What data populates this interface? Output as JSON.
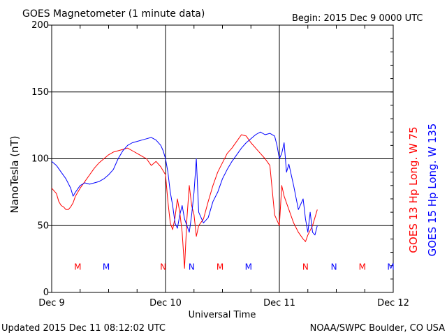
{
  "header": {
    "title": "GOES Magnetometer (1 minute data)",
    "begin": "Begin:  2015 Dec 9 0000 UTC"
  },
  "footer": {
    "updated": "Updated 2015 Dec 11 08:12:02 UTC",
    "credit": "NOAA/SWPC Boulder, CO USA"
  },
  "colors": {
    "goes13": "#ff0000",
    "goes15": "#0000ff",
    "axis": "#000000",
    "background": "#ffffff"
  },
  "chart_data": {
    "type": "line",
    "title": "GOES Magnetometer (1 minute data)",
    "xlabel": "Universal Time",
    "ylabel": "NanoTesla (nT)",
    "xlim": [
      "2015-12-09T00:00",
      "2015-12-12T00:00"
    ],
    "x_unit": "hours since 2015 Dec 9 0000 UTC",
    "ylim": [
      0,
      200
    ],
    "y_ticks": [
      0,
      50,
      100,
      150,
      200
    ],
    "x_ticks": [
      {
        "x": 0,
        "label": "Dec 9"
      },
      {
        "x": 24,
        "label": "Dec 10"
      },
      {
        "x": 48,
        "label": "Dec 11"
      },
      {
        "x": 72,
        "label": "Dec 12"
      }
    ],
    "grid": true,
    "legend_position": "right, vertical",
    "series": [
      {
        "name": "GOES 13 Hp  Long. W 75",
        "color": "#ff0000",
        "x": [
          0,
          1,
          1.5,
          2,
          2.5,
          3,
          3.5,
          4,
          4.5,
          5,
          6,
          7,
          8,
          9,
          10,
          11,
          12,
          13,
          14,
          15,
          16,
          17,
          18,
          19,
          20,
          21,
          22,
          23,
          24,
          24.5,
          25,
          25.5,
          26,
          26.5,
          27,
          27.5,
          28,
          28.5,
          29,
          29.5,
          30,
          30.5,
          31,
          32,
          33,
          34,
          35,
          36,
          37,
          38,
          39,
          40,
          41,
          42,
          43,
          44,
          45,
          46,
          47,
          48,
          48.5,
          49,
          50,
          51,
          52,
          53,
          53.5,
          54,
          55,
          56
        ],
        "y": [
          78,
          74,
          68,
          65,
          64,
          62,
          62,
          64,
          67,
          72,
          78,
          83,
          88,
          93,
          97,
          100,
          103,
          105,
          106,
          107,
          108,
          106,
          104,
          102,
          100,
          95,
          98,
          94,
          88,
          68,
          52,
          47,
          56,
          70,
          60,
          45,
          18,
          55,
          80,
          65,
          58,
          42,
          50,
          55,
          68,
          80,
          90,
          97,
          104,
          108,
          113,
          118,
          117,
          112,
          108,
          104,
          100,
          95,
          58,
          50,
          80,
          72,
          62,
          52,
          45,
          40,
          38,
          43,
          50,
          62
        ]
      },
      {
        "name": "GOES 15 Hp  Long. W 135",
        "color": "#0000ff",
        "x": [
          0,
          1,
          2,
          3,
          4,
          4.5,
          5,
          6,
          7,
          8,
          9,
          10,
          11,
          12,
          13,
          14,
          15,
          16,
          17,
          18,
          19,
          20,
          21,
          22,
          23,
          23.5,
          24,
          24.5,
          25,
          25.5,
          26,
          26.5,
          27,
          27.5,
          28,
          29,
          29.5,
          30,
          30.5,
          31,
          32,
          33,
          34,
          35,
          36,
          37,
          38,
          39,
          40,
          41,
          42,
          43,
          44,
          45,
          46,
          47,
          47.5,
          48,
          48.5,
          49,
          49.5,
          50,
          51,
          52,
          53,
          53.5,
          54,
          54.5,
          55,
          55.5,
          56
        ],
        "y": [
          98,
          95,
          90,
          85,
          78,
          72,
          75,
          80,
          82,
          81,
          82,
          83,
          85,
          88,
          92,
          100,
          106,
          110,
          112,
          113,
          114,
          115,
          116,
          114,
          110,
          106,
          100,
          90,
          75,
          65,
          52,
          48,
          58,
          65,
          55,
          45,
          58,
          75,
          100,
          60,
          52,
          56,
          68,
          75,
          85,
          92,
          98,
          103,
          108,
          112,
          115,
          118,
          120,
          118,
          119,
          117,
          110,
          100,
          104,
          112,
          90,
          96,
          80,
          62,
          70,
          55,
          45,
          60,
          45,
          43,
          50
        ]
      }
    ],
    "annotations": [
      {
        "x": 5.5,
        "y": 17,
        "text": "M",
        "color": "#ff0000"
      },
      {
        "x": 11.5,
        "y": 17,
        "text": "M",
        "color": "#0000ff"
      },
      {
        "x": 23.5,
        "y": 17,
        "text": "N",
        "color": "#ff0000"
      },
      {
        "x": 29.5,
        "y": 17,
        "text": "N",
        "color": "#0000ff"
      },
      {
        "x": 35.5,
        "y": 17,
        "text": "M",
        "color": "#ff0000"
      },
      {
        "x": 41.5,
        "y": 17,
        "text": "M",
        "color": "#0000ff"
      },
      {
        "x": 53.5,
        "y": 17,
        "text": "N",
        "color": "#ff0000"
      },
      {
        "x": 59.5,
        "y": 17,
        "text": "N",
        "color": "#0000ff"
      },
      {
        "x": 65.5,
        "y": 17,
        "text": "M",
        "color": "#ff0000"
      },
      {
        "x": 71.5,
        "y": 17,
        "text": "M",
        "color": "#0000ff"
      }
    ]
  }
}
